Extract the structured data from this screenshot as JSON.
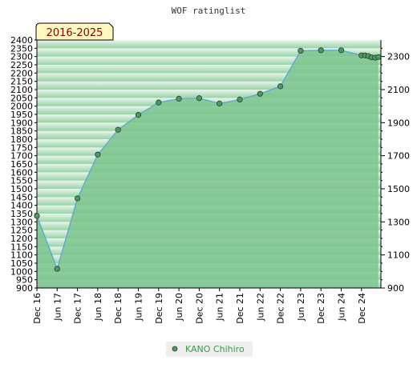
{
  "chart_data": {
    "type": "area",
    "title": "WOF ratinglist",
    "badge": "2016-2025",
    "x": [
      "Dec 16",
      "Jun 17",
      "Dec 17",
      "Jun 18",
      "Dec 18",
      "Jun 19",
      "Dec 19",
      "Jun 20",
      "Dec 20",
      "Jun 21",
      "Dec 21",
      "Jun 22",
      "Dec 22",
      "Jun 23",
      "Dec 23",
      "Jun 24",
      "Dec 24",
      "",
      "",
      "",
      "",
      ""
    ],
    "x_ticks": [
      "Dec 16",
      "Jun 17",
      "Dec 17",
      "Jun 18",
      "Dec 18",
      "Jun 19",
      "Dec 19",
      "Jun 20",
      "Dec 20",
      "Jun 21",
      "Dec 21",
      "Jun 22",
      "Dec 22",
      "Jun 23",
      "Dec 23",
      "Jun 24",
      "Dec 24"
    ],
    "series": [
      {
        "name": "KANO Chihiro",
        "x_index": [
          0,
          1,
          2,
          3,
          4,
          5,
          6,
          7,
          8,
          9,
          10,
          11,
          12,
          13,
          14,
          15,
          16.0,
          16.17,
          16.33,
          16.5,
          16.67,
          16.83
        ],
        "values": [
          1336,
          1016,
          1442,
          1707,
          1857,
          1947,
          2022,
          2045,
          2048,
          2016,
          2040,
          2075,
          2120,
          2335,
          2338,
          2338,
          2307,
          2307,
          2303,
          2295,
          2293,
          2297
        ]
      }
    ],
    "y_left": {
      "min": 900,
      "max": 2400,
      "step": 50
    },
    "y_right": {
      "min": 900,
      "max": 2400,
      "ticks": [
        900,
        1100,
        1300,
        1500,
        1700,
        1900,
        2100,
        2300
      ]
    },
    "colors": {
      "area": "#7cc48e",
      "line": "#5aa7d6",
      "marker": "#4e9a60",
      "badge_bg": "#fff8c0",
      "badge_text": "#8b0000"
    },
    "legend": {
      "position": "bottom-center",
      "label": "KANO Chihiro"
    }
  }
}
